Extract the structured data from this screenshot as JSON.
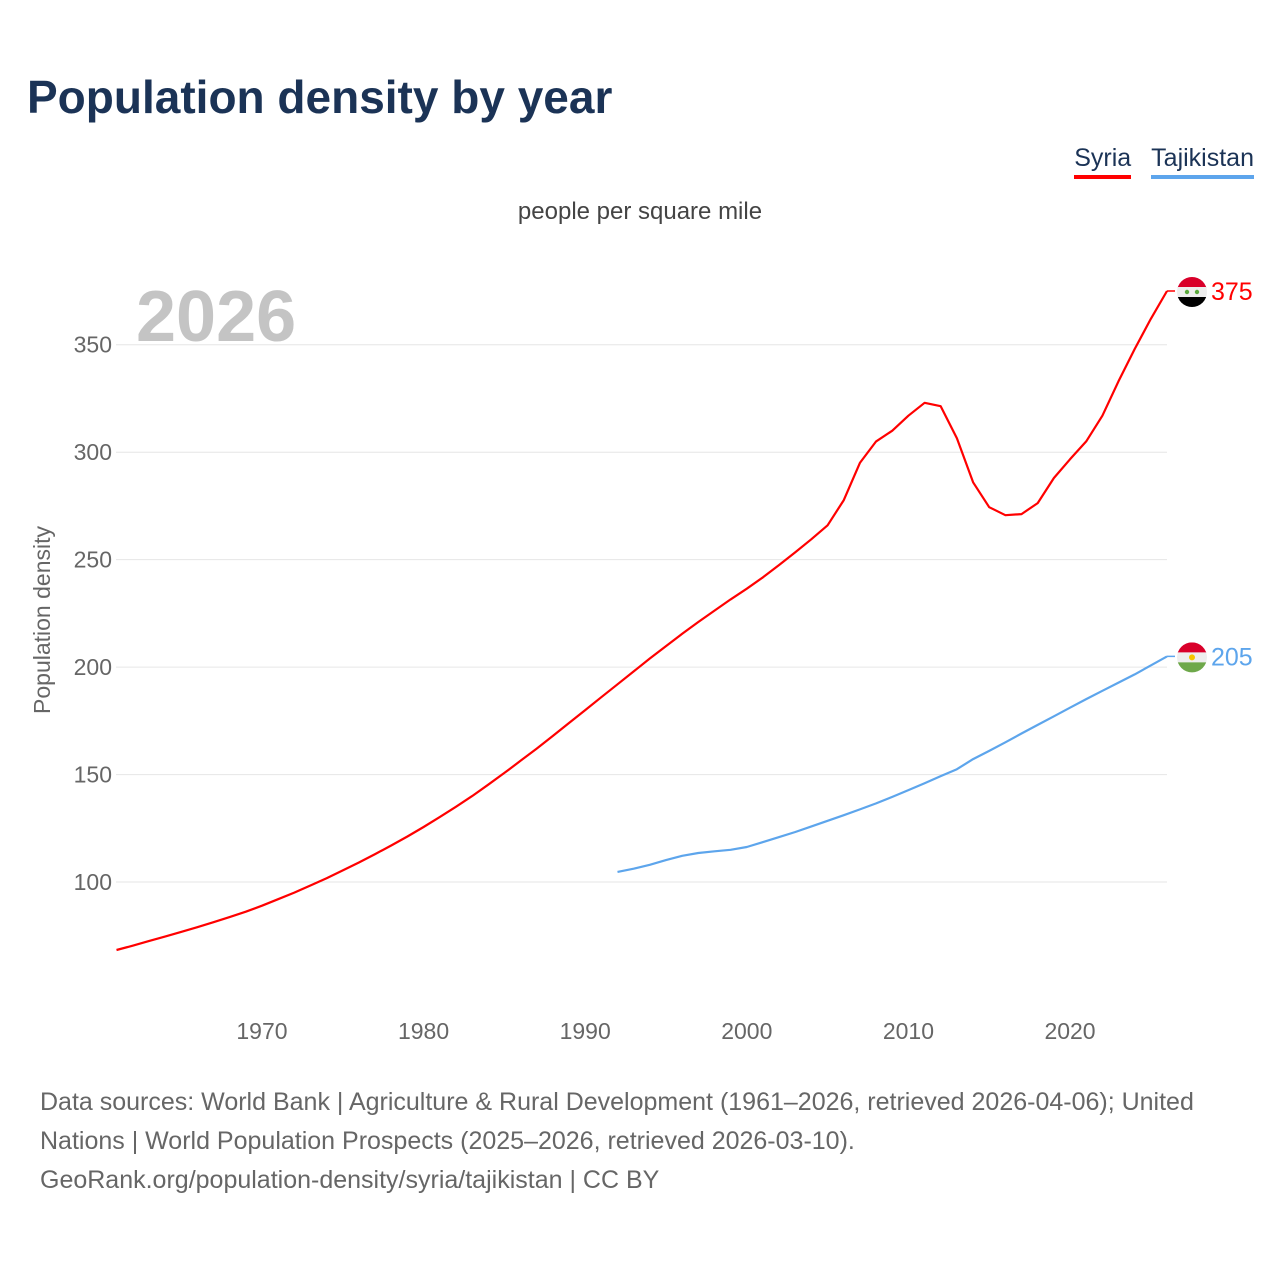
{
  "title": "Population density by year",
  "subtitle": "people per square mile",
  "year_watermark": "2026",
  "footer": {
    "sources": "Data sources: World Bank | Agriculture & Rural Development (1961–2026, retrieved 2026-04-06); United Nations | World Population Prospects (2025–2026, retrieved 2026-03-10).",
    "credit": "GeoRank.org/population-density/syria/tajikistan | CC BY"
  },
  "chart_data": {
    "type": "line",
    "title": "Population density by year",
    "xlabel": "",
    "ylabel": "Population density",
    "xlim": [
      1961,
      2026
    ],
    "ylim": [
      50,
      375
    ],
    "xticks": [
      1970,
      1980,
      1990,
      2000,
      2010,
      2020
    ],
    "yticks": [
      100,
      150,
      200,
      250,
      300,
      350
    ],
    "grid": true,
    "legend_position": "top-right",
    "series": [
      {
        "name": "Syria",
        "color": "#ff0000",
        "end_label": "375",
        "flag": "syria-flag",
        "x_start": 1961,
        "values": [
          68.4,
          70.4,
          72.5,
          74.6,
          76.8,
          79.0,
          81.3,
          83.7,
          86.2,
          89.0,
          92.0,
          95.1,
          98.4,
          101.8,
          105.4,
          109.1,
          113.0,
          117.0,
          121.2,
          125.6,
          130.2,
          135.0,
          140.0,
          145.3,
          150.8,
          156.4,
          162.1,
          168.0,
          174.0,
          180.0,
          186.0,
          192.0,
          198.0,
          204.0,
          209.8,
          215.5,
          221.0,
          226.3,
          231.5,
          236.5,
          241.8,
          247.5,
          253.4,
          259.5,
          266.0,
          277.7,
          295.0,
          305.0,
          310.0,
          317.0,
          323.0,
          321.4,
          306.5,
          286.0,
          274.4,
          270.7,
          271.2,
          276.3,
          288.0,
          296.7,
          305.0,
          317.0,
          333.0,
          348.0,
          362.0,
          375.0
        ]
      },
      {
        "name": "Tajikistan",
        "color": "#5da5ec",
        "end_label": "205",
        "flag": "tajikistan-flag",
        "x_start": 1992,
        "values": [
          104.7,
          106.2,
          108.0,
          110.2,
          112.2,
          113.5,
          114.3,
          115.0,
          116.3,
          118.6,
          120.9,
          123.3,
          125.9,
          128.5,
          131.1,
          133.8,
          136.6,
          139.6,
          142.8,
          146.0,
          149.3,
          152.5,
          157.2,
          161.0,
          165.0,
          169.1,
          173.1,
          177.1,
          181.1,
          185.1,
          189.0,
          192.8,
          196.6,
          200.8,
          205.0
        ]
      }
    ]
  }
}
